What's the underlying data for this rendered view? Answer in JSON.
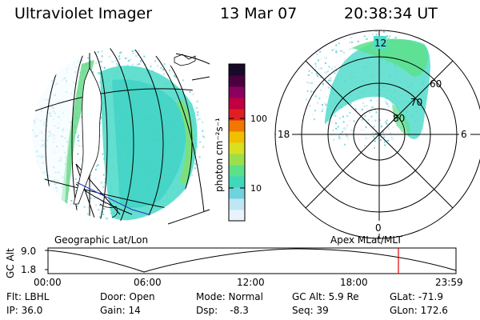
{
  "header": {
    "instrument": "Ultraviolet Imager",
    "date": "13 Mar 07",
    "time": "20:38:34 UT"
  },
  "colorbar": {
    "unit_label": "photon cm⁻²s⁻¹",
    "ticks": [
      "100",
      "10"
    ],
    "colors": [
      "#eaf3fb",
      "#c0e6f4",
      "#6fd3de",
      "#40d8b8",
      "#5ce08a",
      "#9be04a",
      "#d8e020",
      "#f0c000",
      "#f07800",
      "#e02020",
      "#c00040",
      "#8a0060",
      "#4a0040",
      "#1a0a2a"
    ]
  },
  "left_panel": {
    "caption": "Geographic Lat/Lon"
  },
  "right_panel": {
    "caption": "Apex MLat/MLT",
    "mlt_labels": {
      "top": "12",
      "bottom": "0",
      "left": "18",
      "right": "6"
    },
    "lat_labels": [
      "60",
      "70",
      "80"
    ]
  },
  "altitude_plot": {
    "ylabel": "GC Alt",
    "yticks": [
      "9.0",
      "1.8"
    ],
    "xticks": [
      "00:00",
      "06:00",
      "12:00",
      "18:00",
      "23:59"
    ],
    "marker_color": "#e00000"
  },
  "info": {
    "flt": "Flt: LBHL",
    "ip": "IP: 36.0",
    "door": "Door: Open",
    "gain": "Gain: 14",
    "mode": "Mode: Normal",
    "dsp": "Dsp:    -8.3",
    "gcalt": "GC Alt: 5.9 Re",
    "seq": "Seq: 39",
    "glat": "GLat: -71.9",
    "glon": "GLon: 172.6"
  }
}
